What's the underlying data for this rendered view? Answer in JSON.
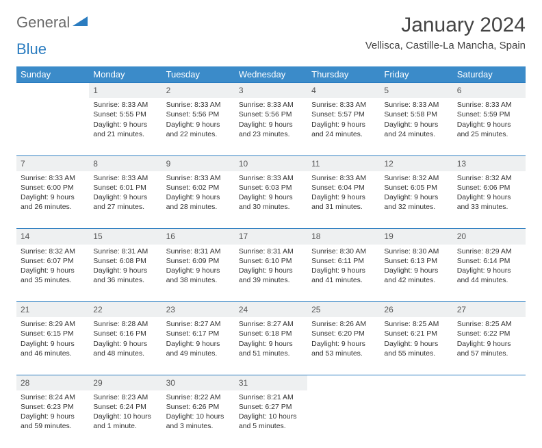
{
  "brand": {
    "part1": "General",
    "part2": "Blue"
  },
  "title": "January 2024",
  "location": "Vellisca, Castille-La Mancha, Spain",
  "colors": {
    "header_bg": "#3b8bc9",
    "header_text": "#ffffff",
    "daynum_bg": "#eef0f1",
    "row_border": "#2a7cc0",
    "brand_gray": "#6a6a6a",
    "brand_blue": "#2a7cc0"
  },
  "weekdays": [
    "Sunday",
    "Monday",
    "Tuesday",
    "Wednesday",
    "Thursday",
    "Friday",
    "Saturday"
  ],
  "weeks": [
    [
      null,
      {
        "n": "1",
        "sunrise": "8:33 AM",
        "sunset": "5:55 PM",
        "daylight": "9 hours and 21 minutes."
      },
      {
        "n": "2",
        "sunrise": "8:33 AM",
        "sunset": "5:56 PM",
        "daylight": "9 hours and 22 minutes."
      },
      {
        "n": "3",
        "sunrise": "8:33 AM",
        "sunset": "5:56 PM",
        "daylight": "9 hours and 23 minutes."
      },
      {
        "n": "4",
        "sunrise": "8:33 AM",
        "sunset": "5:57 PM",
        "daylight": "9 hours and 24 minutes."
      },
      {
        "n": "5",
        "sunrise": "8:33 AM",
        "sunset": "5:58 PM",
        "daylight": "9 hours and 24 minutes."
      },
      {
        "n": "6",
        "sunrise": "8:33 AM",
        "sunset": "5:59 PM",
        "daylight": "9 hours and 25 minutes."
      }
    ],
    [
      {
        "n": "7",
        "sunrise": "8:33 AM",
        "sunset": "6:00 PM",
        "daylight": "9 hours and 26 minutes."
      },
      {
        "n": "8",
        "sunrise": "8:33 AM",
        "sunset": "6:01 PM",
        "daylight": "9 hours and 27 minutes."
      },
      {
        "n": "9",
        "sunrise": "8:33 AM",
        "sunset": "6:02 PM",
        "daylight": "9 hours and 28 minutes."
      },
      {
        "n": "10",
        "sunrise": "8:33 AM",
        "sunset": "6:03 PM",
        "daylight": "9 hours and 30 minutes."
      },
      {
        "n": "11",
        "sunrise": "8:33 AM",
        "sunset": "6:04 PM",
        "daylight": "9 hours and 31 minutes."
      },
      {
        "n": "12",
        "sunrise": "8:32 AM",
        "sunset": "6:05 PM",
        "daylight": "9 hours and 32 minutes."
      },
      {
        "n": "13",
        "sunrise": "8:32 AM",
        "sunset": "6:06 PM",
        "daylight": "9 hours and 33 minutes."
      }
    ],
    [
      {
        "n": "14",
        "sunrise": "8:32 AM",
        "sunset": "6:07 PM",
        "daylight": "9 hours and 35 minutes."
      },
      {
        "n": "15",
        "sunrise": "8:31 AM",
        "sunset": "6:08 PM",
        "daylight": "9 hours and 36 minutes."
      },
      {
        "n": "16",
        "sunrise": "8:31 AM",
        "sunset": "6:09 PM",
        "daylight": "9 hours and 38 minutes."
      },
      {
        "n": "17",
        "sunrise": "8:31 AM",
        "sunset": "6:10 PM",
        "daylight": "9 hours and 39 minutes."
      },
      {
        "n": "18",
        "sunrise": "8:30 AM",
        "sunset": "6:11 PM",
        "daylight": "9 hours and 41 minutes."
      },
      {
        "n": "19",
        "sunrise": "8:30 AM",
        "sunset": "6:13 PM",
        "daylight": "9 hours and 42 minutes."
      },
      {
        "n": "20",
        "sunrise": "8:29 AM",
        "sunset": "6:14 PM",
        "daylight": "9 hours and 44 minutes."
      }
    ],
    [
      {
        "n": "21",
        "sunrise": "8:29 AM",
        "sunset": "6:15 PM",
        "daylight": "9 hours and 46 minutes."
      },
      {
        "n": "22",
        "sunrise": "8:28 AM",
        "sunset": "6:16 PM",
        "daylight": "9 hours and 48 minutes."
      },
      {
        "n": "23",
        "sunrise": "8:27 AM",
        "sunset": "6:17 PM",
        "daylight": "9 hours and 49 minutes."
      },
      {
        "n": "24",
        "sunrise": "8:27 AM",
        "sunset": "6:18 PM",
        "daylight": "9 hours and 51 minutes."
      },
      {
        "n": "25",
        "sunrise": "8:26 AM",
        "sunset": "6:20 PM",
        "daylight": "9 hours and 53 minutes."
      },
      {
        "n": "26",
        "sunrise": "8:25 AM",
        "sunset": "6:21 PM",
        "daylight": "9 hours and 55 minutes."
      },
      {
        "n": "27",
        "sunrise": "8:25 AM",
        "sunset": "6:22 PM",
        "daylight": "9 hours and 57 minutes."
      }
    ],
    [
      {
        "n": "28",
        "sunrise": "8:24 AM",
        "sunset": "6:23 PM",
        "daylight": "9 hours and 59 minutes."
      },
      {
        "n": "29",
        "sunrise": "8:23 AM",
        "sunset": "6:24 PM",
        "daylight": "10 hours and 1 minute."
      },
      {
        "n": "30",
        "sunrise": "8:22 AM",
        "sunset": "6:26 PM",
        "daylight": "10 hours and 3 minutes."
      },
      {
        "n": "31",
        "sunrise": "8:21 AM",
        "sunset": "6:27 PM",
        "daylight": "10 hours and 5 minutes."
      },
      null,
      null,
      null
    ]
  ],
  "labels": {
    "sunrise": "Sunrise:",
    "sunset": "Sunset:",
    "daylight": "Daylight:"
  }
}
